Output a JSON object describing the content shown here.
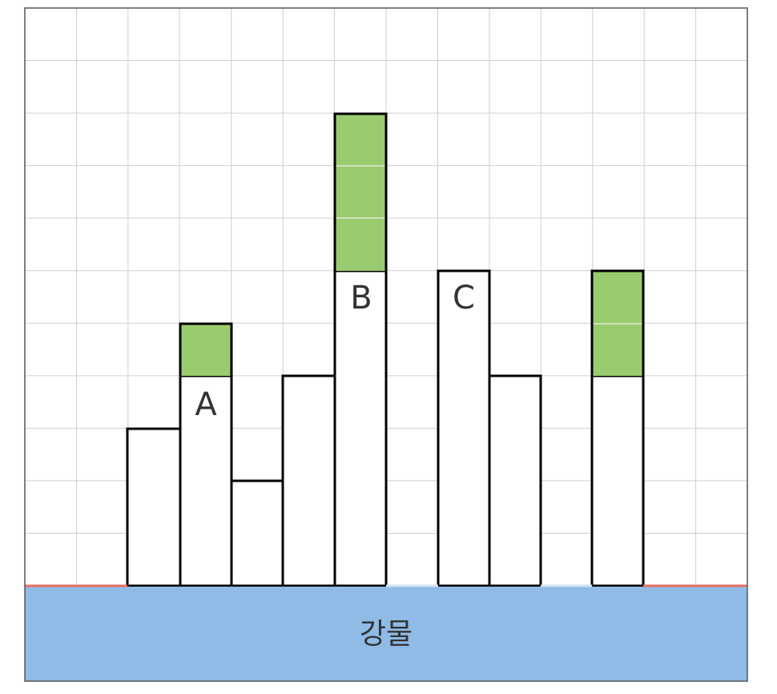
{
  "buildings": {
    "a": "A",
    "b": "B",
    "c": "C"
  },
  "water": "강물"
}
